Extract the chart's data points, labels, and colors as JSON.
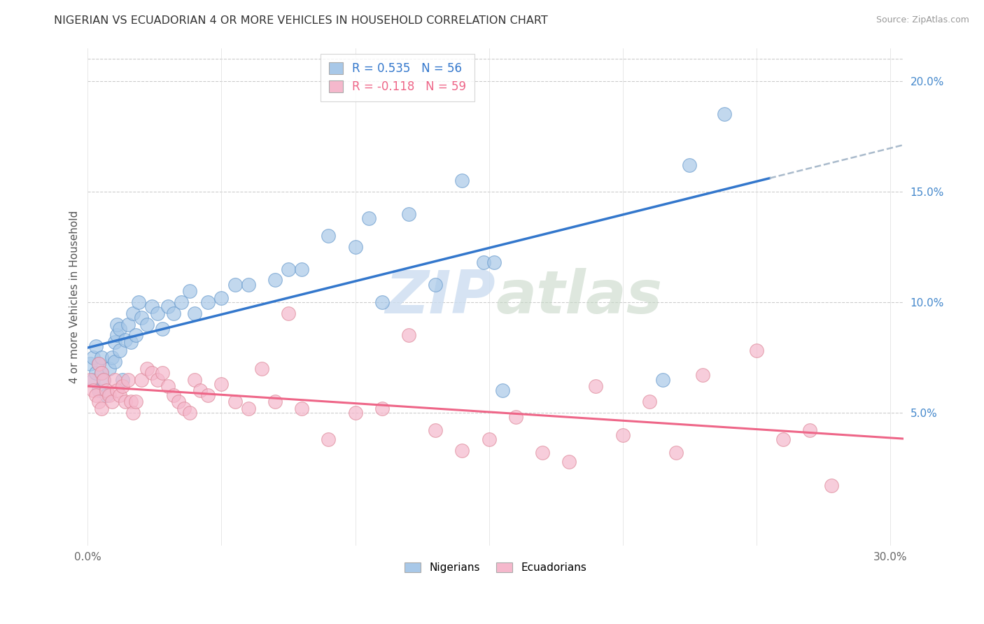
{
  "title": "NIGERIAN VS ECUADORIAN 4 OR MORE VEHICLES IN HOUSEHOLD CORRELATION CHART",
  "source": "Source: ZipAtlas.com",
  "ylabel": "4 or more Vehicles in Household",
  "xlim": [
    0.0,
    0.305
  ],
  "ylim": [
    -0.01,
    0.215
  ],
  "xtick_positions": [
    0.0,
    0.05,
    0.1,
    0.15,
    0.2,
    0.25,
    0.3
  ],
  "xtick_labels_show": {
    "0.0": "0.0%",
    "0.3": "30.0%"
  },
  "yticks_right": [
    0.05,
    0.1,
    0.15,
    0.2
  ],
  "yticklabels_right": [
    "5.0%",
    "10.0%",
    "15.0%",
    "20.0%"
  ],
  "nigerian_color": "#a8c8e8",
  "nigerian_edge": "#6699cc",
  "ecuadorian_color": "#f5b8cc",
  "ecuadorian_edge": "#dd8899",
  "nigerian_trend_color": "#3377cc",
  "ecuadorian_trend_color": "#ee6688",
  "dashed_color": "#aabbcc",
  "nigerian_R": 0.535,
  "nigerian_N": 56,
  "ecuadorian_R": -0.118,
  "ecuadorian_N": 59,
  "legend_label_nigerian": "Nigerians",
  "legend_label_ecuadorian": "Ecuadorians",
  "grid_color": "#cccccc",
  "grid_style": "--",
  "watermark_color": "#ccddf0",
  "nigerian_x": [
    0.001,
    0.002,
    0.002,
    0.003,
    0.003,
    0.004,
    0.004,
    0.005,
    0.005,
    0.006,
    0.007,
    0.008,
    0.009,
    0.01,
    0.01,
    0.011,
    0.011,
    0.012,
    0.012,
    0.013,
    0.014,
    0.015,
    0.016,
    0.017,
    0.018,
    0.019,
    0.02,
    0.022,
    0.024,
    0.026,
    0.028,
    0.03,
    0.032,
    0.035,
    0.038,
    0.04,
    0.045,
    0.05,
    0.055,
    0.06,
    0.07,
    0.075,
    0.08,
    0.09,
    0.1,
    0.105,
    0.11,
    0.12,
    0.13,
    0.14,
    0.148,
    0.152,
    0.155,
    0.215,
    0.225,
    0.238
  ],
  "nigerian_y": [
    0.072,
    0.075,
    0.065,
    0.068,
    0.08,
    0.072,
    0.06,
    0.075,
    0.068,
    0.065,
    0.058,
    0.07,
    0.075,
    0.073,
    0.082,
    0.085,
    0.09,
    0.078,
    0.088,
    0.065,
    0.083,
    0.09,
    0.082,
    0.095,
    0.085,
    0.1,
    0.093,
    0.09,
    0.098,
    0.095,
    0.088,
    0.098,
    0.095,
    0.1,
    0.105,
    0.095,
    0.1,
    0.102,
    0.108,
    0.108,
    0.11,
    0.115,
    0.115,
    0.13,
    0.125,
    0.138,
    0.1,
    0.14,
    0.108,
    0.155,
    0.118,
    0.118,
    0.06,
    0.065,
    0.162,
    0.185
  ],
  "ecuadorian_x": [
    0.001,
    0.002,
    0.003,
    0.004,
    0.004,
    0.005,
    0.005,
    0.006,
    0.007,
    0.008,
    0.009,
    0.01,
    0.011,
    0.012,
    0.013,
    0.014,
    0.015,
    0.016,
    0.017,
    0.018,
    0.02,
    0.022,
    0.024,
    0.026,
    0.028,
    0.03,
    0.032,
    0.034,
    0.036,
    0.038,
    0.04,
    0.042,
    0.045,
    0.05,
    0.055,
    0.06,
    0.065,
    0.07,
    0.075,
    0.08,
    0.09,
    0.1,
    0.11,
    0.12,
    0.13,
    0.14,
    0.15,
    0.16,
    0.17,
    0.18,
    0.19,
    0.2,
    0.21,
    0.22,
    0.23,
    0.25,
    0.26,
    0.27,
    0.278
  ],
  "ecuadorian_y": [
    0.065,
    0.06,
    0.058,
    0.055,
    0.072,
    0.052,
    0.068,
    0.065,
    0.06,
    0.058,
    0.055,
    0.065,
    0.06,
    0.058,
    0.062,
    0.055,
    0.065,
    0.055,
    0.05,
    0.055,
    0.065,
    0.07,
    0.068,
    0.065,
    0.068,
    0.062,
    0.058,
    0.055,
    0.052,
    0.05,
    0.065,
    0.06,
    0.058,
    0.063,
    0.055,
    0.052,
    0.07,
    0.055,
    0.095,
    0.052,
    0.038,
    0.05,
    0.052,
    0.085,
    0.042,
    0.033,
    0.038,
    0.048,
    0.032,
    0.028,
    0.062,
    0.04,
    0.055,
    0.032,
    0.067,
    0.078,
    0.038,
    0.042,
    0.017
  ]
}
